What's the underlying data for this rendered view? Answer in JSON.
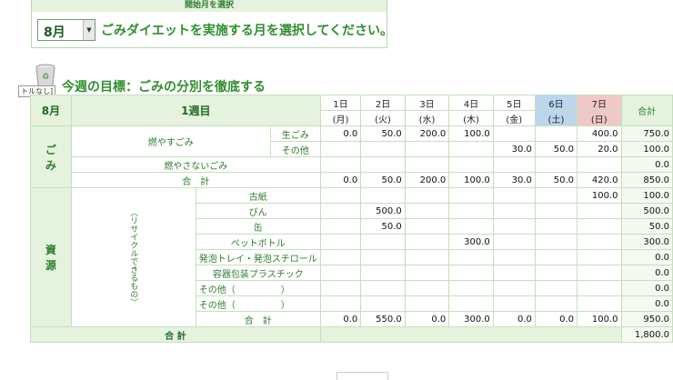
{
  "start_month": {
    "header": "開始月を選択",
    "selected": "8月",
    "instruction": "ごみダイエットを実施する月を選択してください。"
  },
  "tooltip": "トルなし]",
  "goal_title": "今週の目標：ごみの分別を徹底する",
  "table": {
    "month": "8月",
    "week": "1週目",
    "total_header": "合計",
    "days": [
      {
        "date": "1日",
        "dow": "(月)"
      },
      {
        "date": "2日",
        "dow": "(火)"
      },
      {
        "date": "3日",
        "dow": "(水)"
      },
      {
        "date": "4日",
        "dow": "(木)"
      },
      {
        "date": "5日",
        "dow": "(金)"
      },
      {
        "date": "6日",
        "dow": "(土)"
      },
      {
        "date": "7日",
        "dow": "(日)"
      }
    ],
    "garbage_label": "ご\nみ",
    "moyasu_label": "燃やすごみ",
    "nama_label": "生ごみ",
    "sonota_label": "その他",
    "moyasanai_label": "燃やさないごみ",
    "garbage_total_label": "合　計",
    "resource_label": "資\n源",
    "resource_sub": "（リサイクルできるもの）",
    "resource_total_label": "合　計",
    "grand_total_label": "合 計",
    "grand_total": "1,800.0",
    "rows": {
      "nama": {
        "values": [
          "0.0",
          "50.0",
          "200.0",
          "100.0",
          "",
          "",
          "400.0"
        ],
        "total": "750.0"
      },
      "sonota": {
        "values": [
          "",
          "",
          "",
          "",
          "30.0",
          "50.0",
          "20.0"
        ],
        "total": "100.0"
      },
      "moyasanai": {
        "values": [
          "",
          "",
          "",
          "",
          "",
          "",
          ""
        ],
        "total": "0.0"
      },
      "garbage_total": {
        "values": [
          "0.0",
          "50.0",
          "200.0",
          "100.0",
          "30.0",
          "50.0",
          "420.0"
        ],
        "total": "850.0"
      },
      "r1": {
        "label": "古紙",
        "values": [
          "",
          "",
          "",
          "",
          "",
          "",
          "100.0"
        ],
        "total": "100.0"
      },
      "r2": {
        "label": "びん",
        "values": [
          "",
          "500.0",
          "",
          "",
          "",
          "",
          ""
        ],
        "total": "500.0"
      },
      "r3": {
        "label": "缶",
        "values": [
          "",
          "50.0",
          "",
          "",
          "",
          "",
          ""
        ],
        "total": "50.0"
      },
      "r4": {
        "label": "ペットボトル",
        "values": [
          "",
          "",
          "",
          "300.0",
          "",
          "",
          ""
        ],
        "total": "300.0"
      },
      "r5": {
        "label": "発泡トレイ・発泡スチロール",
        "values": [
          "",
          "",
          "",
          "",
          "",
          "",
          ""
        ],
        "total": "0.0"
      },
      "r6": {
        "label": "容器包装プラスチック",
        "values": [
          "",
          "",
          "",
          "",
          "",
          "",
          ""
        ],
        "total": "0.0"
      },
      "r7": {
        "label": "その他（　　　　　）",
        "values": [
          "",
          "",
          "",
          "",
          "",
          "",
          ""
        ],
        "total": "0.0"
      },
      "r8": {
        "label": "その他（　　　　　）",
        "values": [
          "",
          "",
          "",
          "",
          "",
          "",
          ""
        ],
        "total": "0.0"
      },
      "resource_total": {
        "values": [
          "0.0",
          "550.0",
          "0.0",
          "300.0",
          "0.0",
          "0.0",
          "100.0"
        ],
        "total": "950.0"
      }
    }
  },
  "colors": {
    "green_text": "#2f8f2f",
    "header_fill": "#e5f3de",
    "saturday": "#bcd6ee",
    "sunday": "#f2c7c7",
    "border": "#c5dfbd"
  }
}
